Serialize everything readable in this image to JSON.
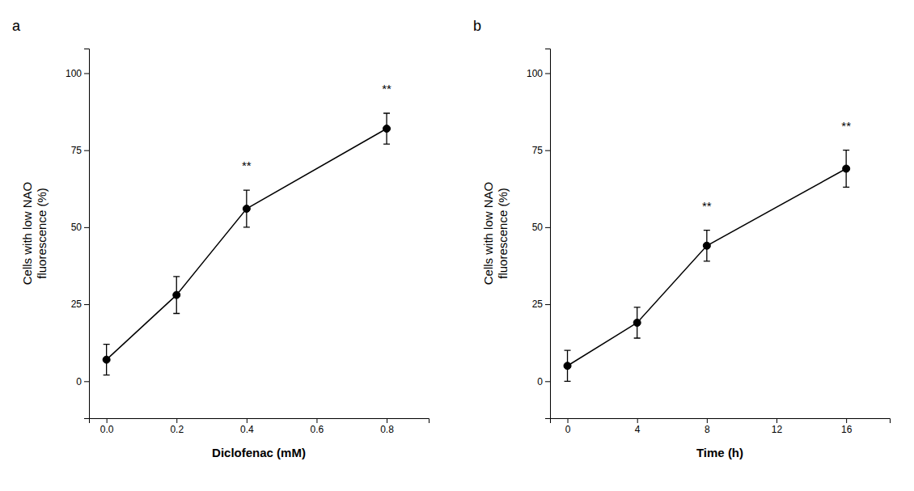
{
  "chart_data": [
    {
      "type": "line",
      "title": "a",
      "x": [
        0.0,
        0.2,
        0.4,
        0.8
      ],
      "values": [
        7,
        28,
        56,
        82
      ],
      "yerr": [
        5,
        6,
        6,
        5
      ],
      "color": "black",
      "marker": "circle",
      "line_style": "solid",
      "xlabel": "Diclofenac (mM)",
      "ylabel": "Cells with low NAO\nfluorescence (%)",
      "xlim": [
        -0.05,
        0.92
      ],
      "ylim": [
        -12,
        108
      ],
      "xticks": [
        {
          "value": 0.0,
          "label": "0.0"
        },
        0.2,
        0.4,
        0.6,
        0.8
      ],
      "yticks": [
        0,
        25,
        50,
        75,
        100
      ],
      "annotations": [
        {
          "x": 0.4,
          "y": 68,
          "text": "**"
        },
        {
          "x": 0.8,
          "y": 93,
          "text": "**"
        }
      ],
      "grid": false
    },
    {
      "type": "line",
      "title": "b",
      "x": [
        0,
        4,
        8,
        16
      ],
      "values": [
        5,
        19,
        44,
        69
      ],
      "yerr": [
        5,
        5,
        5,
        6
      ],
      "color": "black",
      "marker": "circle",
      "line_style": "solid",
      "xlabel": "Time (h)",
      "ylabel": "Cells with low NAO\nfluorescence (%)",
      "xlim": [
        -1,
        18.5
      ],
      "ylim": [
        -12,
        108
      ],
      "xticks": [
        0,
        4,
        8,
        12,
        16
      ],
      "yticks": [
        0,
        25,
        50,
        75,
        100
      ],
      "annotations": [
        {
          "x": 8,
          "y": 55,
          "text": "**"
        },
        {
          "x": 16,
          "y": 81,
          "text": "**"
        }
      ],
      "grid": false
    }
  ]
}
